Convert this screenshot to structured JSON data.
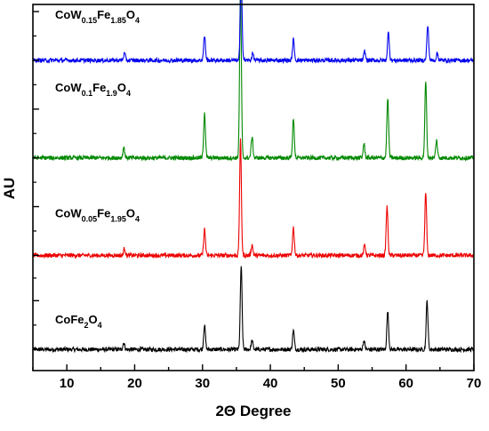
{
  "chart_data": {
    "type": "line",
    "title": "",
    "xlabel": "2Θ Degree",
    "ylabel": "AU",
    "xlim": [
      5,
      70
    ],
    "x_ticks": [
      10,
      20,
      30,
      40,
      50,
      60,
      70
    ],
    "x_tick_labels": [
      "10",
      "20",
      "30",
      "40",
      "50",
      "60",
      "70"
    ],
    "y_ticks_labeled": false,
    "grid": false,
    "legend": "none",
    "stacked_offset": true,
    "series": [
      {
        "label_parts": {
          "base": "CoFe",
          "sub1": "2",
          "mid": "O",
          "sub2": "4"
        },
        "color": "#000000",
        "baseline": 0.03,
        "peaks": [
          {
            "x": 18.4,
            "h": 0.02
          },
          {
            "x": 30.3,
            "h": 0.07
          },
          {
            "x": 35.7,
            "h": 0.24
          },
          {
            "x": 37.3,
            "h": 0.025
          },
          {
            "x": 43.4,
            "h": 0.055
          },
          {
            "x": 53.8,
            "h": 0.025
          },
          {
            "x": 57.3,
            "h": 0.11
          },
          {
            "x": 63.1,
            "h": 0.14
          }
        ]
      },
      {
        "label_parts": {
          "base": "CoW",
          "sub1": "0.05",
          "mid": "Fe",
          "sub2": "1.95",
          "end": "O",
          "sub3": "4"
        },
        "color": "#ee0000",
        "baseline": 0.3,
        "peaks": [
          {
            "x": 18.5,
            "h": 0.02
          },
          {
            "x": 30.3,
            "h": 0.075
          },
          {
            "x": 35.6,
            "h": 0.33
          },
          {
            "x": 37.3,
            "h": 0.03
          },
          {
            "x": 43.4,
            "h": 0.08
          },
          {
            "x": 53.9,
            "h": 0.03
          },
          {
            "x": 57.2,
            "h": 0.14
          },
          {
            "x": 62.9,
            "h": 0.18
          }
        ]
      },
      {
        "label_parts": {
          "base": "CoW",
          "sub1": "0.1",
          "mid": "Fe",
          "sub2": "1.9",
          "end": "O",
          "sub3": "4"
        },
        "color": "#008800",
        "baseline": 0.58,
        "peaks": [
          {
            "x": 18.4,
            "h": 0.03
          },
          {
            "x": 30.3,
            "h": 0.13
          },
          {
            "x": 35.6,
            "h": 0.48
          },
          {
            "x": 37.3,
            "h": 0.06
          },
          {
            "x": 43.4,
            "h": 0.11
          },
          {
            "x": 53.8,
            "h": 0.04
          },
          {
            "x": 57.3,
            "h": 0.17
          },
          {
            "x": 62.9,
            "h": 0.22
          },
          {
            "x": 64.5,
            "h": 0.05
          }
        ]
      },
      {
        "label_parts": {
          "base": "CoW",
          "sub1": "0.15",
          "mid": "Fe",
          "sub2": "1.85",
          "end": "O",
          "sub3": "4"
        },
        "color": "#0000ee",
        "baseline": 0.86,
        "peaks": [
          {
            "x": 18.5,
            "h": 0.02
          },
          {
            "x": 30.3,
            "h": 0.07
          },
          {
            "x": 35.7,
            "h": 0.25
          },
          {
            "x": 37.4,
            "h": 0.02
          },
          {
            "x": 43.4,
            "h": 0.06
          },
          {
            "x": 53.9,
            "h": 0.025
          },
          {
            "x": 57.4,
            "h": 0.08
          },
          {
            "x": 63.2,
            "h": 0.1
          },
          {
            "x": 64.6,
            "h": 0.02
          }
        ]
      }
    ]
  }
}
